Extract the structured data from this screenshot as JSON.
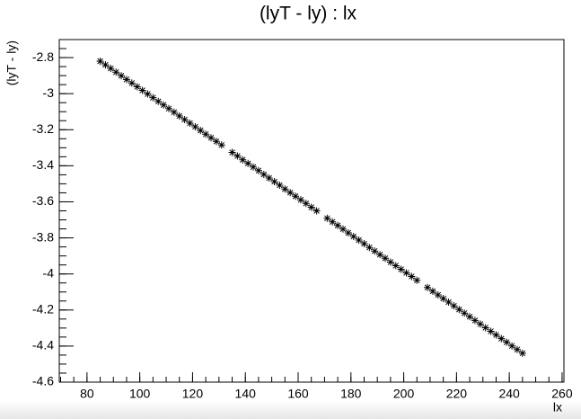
{
  "chart_data": {
    "type": "scatter",
    "title": "(lyT - ly) : lx",
    "x_label": "lx",
    "y_label": "(lyT - ly)",
    "color": "#000000",
    "marker": "asterisk",
    "x": [
      85,
      87,
      89,
      91,
      93,
      95,
      97,
      99,
      101,
      103,
      105,
      107,
      109,
      111,
      113,
      115,
      117,
      119,
      121,
      123,
      125,
      127,
      129,
      131,
      135,
      137,
      139,
      141,
      143,
      145,
      147,
      149,
      151,
      153,
      155,
      157,
      159,
      161,
      163,
      165,
      167,
      171,
      173,
      175,
      177,
      179,
      181,
      183,
      185,
      187,
      189,
      191,
      193,
      195,
      197,
      199,
      201,
      203,
      205,
      209,
      211,
      213,
      215,
      217,
      219,
      221,
      223,
      225,
      227,
      229,
      231,
      233,
      235,
      237,
      239,
      241,
      243,
      245
    ],
    "values": [
      -2.82,
      -2.84,
      -2.86,
      -2.881,
      -2.901,
      -2.921,
      -2.941,
      -2.962,
      -2.982,
      -3.002,
      -3.022,
      -3.043,
      -3.063,
      -3.083,
      -3.103,
      -3.124,
      -3.144,
      -3.164,
      -3.184,
      -3.204,
      -3.225,
      -3.245,
      -3.265,
      -3.285,
      -3.326,
      -3.346,
      -3.367,
      -3.387,
      -3.407,
      -3.427,
      -3.448,
      -3.468,
      -3.488,
      -3.508,
      -3.529,
      -3.549,
      -3.569,
      -3.589,
      -3.609,
      -3.63,
      -3.65,
      -3.691,
      -3.711,
      -3.731,
      -3.751,
      -3.772,
      -3.792,
      -3.812,
      -3.832,
      -3.853,
      -3.873,
      -3.893,
      -3.913,
      -3.934,
      -3.954,
      -3.974,
      -3.994,
      -4.014,
      -4.035,
      -4.075,
      -4.096,
      -4.116,
      -4.136,
      -4.156,
      -4.177,
      -4.197,
      -4.217,
      -4.237,
      -4.258,
      -4.278,
      -4.298,
      -4.318,
      -4.338,
      -4.359,
      -4.379,
      -4.399,
      -4.419,
      -4.44
    ],
    "xlim": [
      69.5,
      260.7
    ],
    "xticks": [
      80,
      100,
      120,
      140,
      160,
      180,
      200,
      220,
      240,
      260
    ],
    "ylim": [
      -4.6,
      -2.7
    ],
    "yticks": [
      -2.8,
      -3,
      -3.2,
      -3.4,
      -3.6,
      -3.8,
      -4,
      -4.2,
      -4.4,
      -4.6
    ],
    "grid": false
  }
}
